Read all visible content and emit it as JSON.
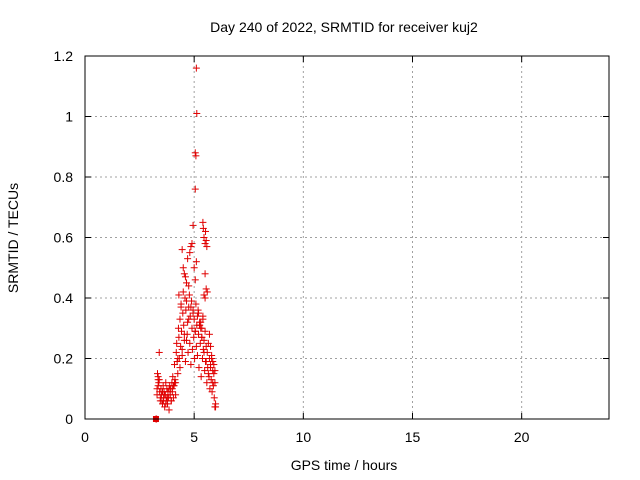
{
  "chart_data": {
    "type": "scatter",
    "title": "Day 240 of 2022, SRMTID for receiver kuj2",
    "xlabel": "GPS time / hours",
    "ylabel": "SRMTID / TECUs",
    "xlim": [
      0,
      24
    ],
    "ylim": [
      0,
      1.2
    ],
    "xticks": [
      0,
      5,
      10,
      15,
      20
    ],
    "yticks": [
      0,
      0.2,
      0.4,
      0.6,
      0.8,
      1,
      1.2
    ],
    "xtick_labels": [
      "0",
      "5",
      "10",
      "15",
      "20"
    ],
    "ytick_labels": [
      "0",
      "0.2",
      "0.4",
      "0.6",
      "0.8",
      "1",
      "1.2"
    ],
    "grid": true,
    "marker": "+",
    "color": "#e00000",
    "series": [
      {
        "name": "SRMTID",
        "x": [
          3.25,
          3.28,
          3.3,
          3.32,
          3.35,
          3.38,
          3.4,
          3.42,
          3.45,
          3.48,
          3.5,
          3.52,
          3.55,
          3.58,
          3.6,
          3.62,
          3.65,
          3.68,
          3.7,
          3.72,
          3.75,
          3.78,
          3.8,
          3.82,
          3.85,
          3.88,
          3.9,
          3.92,
          3.95,
          3.98,
          4.0,
          4.02,
          4.05,
          4.08,
          4.1,
          4.12,
          4.15,
          4.18,
          4.2,
          4.22,
          4.25,
          4.28,
          4.3,
          4.32,
          4.35,
          4.38,
          4.4,
          4.42,
          4.45,
          4.48,
          4.5,
          4.52,
          4.55,
          4.58,
          4.6,
          4.62,
          4.65,
          4.68,
          4.7,
          4.72,
          4.75,
          4.78,
          4.8,
          4.82,
          4.85,
          4.88,
          4.9,
          4.92,
          4.95,
          4.98,
          5.0,
          5.02,
          5.05,
          5.08,
          5.1,
          5.12,
          5.15,
          5.18,
          5.2,
          5.22,
          5.25,
          5.28,
          5.3,
          5.32,
          5.35,
          5.38,
          5.4,
          5.42,
          5.45,
          5.48,
          5.5,
          5.52,
          5.55,
          5.58,
          5.6,
          5.62,
          5.65,
          5.68,
          5.7,
          5.72,
          5.75,
          5.78,
          5.8,
          5.82,
          5.85,
          5.88,
          5.9,
          5.92,
          5.95,
          5.98,
          3.35,
          3.45,
          3.55,
          3.65,
          3.75,
          3.85,
          3.95,
          4.05,
          4.15,
          4.25,
          4.35,
          4.45,
          4.55,
          4.65,
          4.75,
          4.85,
          4.95,
          5.05,
          5.15,
          5.25,
          5.35,
          5.45,
          5.55,
          5.65,
          5.75,
          5.85,
          5.95,
          5.1,
          5.12,
          5.05,
          5.08,
          5.05,
          5.4,
          5.42,
          5.45,
          5.5,
          5.52,
          5.55,
          5.58,
          5.5,
          5.55,
          5.6,
          5.45,
          5.5,
          4.8,
          4.85,
          4.9,
          4.95,
          5.0,
          5.05,
          5.1,
          4.6,
          4.7,
          4.75,
          4.5,
          4.55,
          4.65,
          4.3,
          4.4,
          4.45,
          5.2,
          5.25,
          5.3,
          5.35,
          5.4,
          5.7,
          5.75,
          5.8,
          5.85,
          5.9,
          5.95,
          5.98,
          3.3,
          3.35,
          3.4,
          3.6,
          3.7,
          3.8,
          3.9,
          4.0,
          4.1
        ],
        "y": [
          0.0,
          0.0,
          0.1,
          0.15,
          0.13,
          0.12,
          0.22,
          0.09,
          0.07,
          0.1,
          0.08,
          0.06,
          0.05,
          0.11,
          0.07,
          0.09,
          0.04,
          0.08,
          0.12,
          0.06,
          0.1,
          0.05,
          0.09,
          0.07,
          0.03,
          0.11,
          0.08,
          0.1,
          0.06,
          0.12,
          0.09,
          0.14,
          0.07,
          0.11,
          0.18,
          0.13,
          0.08,
          0.22,
          0.25,
          0.19,
          0.15,
          0.3,
          0.27,
          0.2,
          0.33,
          0.24,
          0.38,
          0.29,
          0.21,
          0.35,
          0.42,
          0.31,
          0.26,
          0.4,
          0.19,
          0.36,
          0.45,
          0.28,
          0.32,
          0.22,
          0.37,
          0.41,
          0.25,
          0.34,
          0.18,
          0.39,
          0.3,
          0.23,
          0.35,
          0.27,
          0.33,
          0.2,
          0.29,
          0.38,
          0.24,
          0.31,
          0.21,
          0.36,
          0.28,
          0.17,
          0.32,
          0.25,
          0.3,
          0.14,
          0.27,
          0.2,
          0.33,
          0.23,
          0.26,
          0.16,
          0.29,
          0.19,
          0.24,
          0.12,
          0.22,
          0.17,
          0.25,
          0.14,
          0.2,
          0.1,
          0.18,
          0.13,
          0.21,
          0.09,
          0.16,
          0.11,
          0.15,
          0.07,
          0.12,
          0.05,
          0.14,
          0.06,
          0.09,
          0.08,
          0.07,
          0.1,
          0.06,
          0.11,
          0.12,
          0.2,
          0.17,
          0.23,
          0.28,
          0.26,
          0.33,
          0.37,
          0.36,
          0.29,
          0.34,
          0.31,
          0.27,
          0.22,
          0.19,
          0.15,
          0.17,
          0.12,
          0.04,
          1.16,
          1.01,
          0.88,
          0.87,
          0.76,
          0.65,
          0.63,
          0.6,
          0.58,
          0.62,
          0.59,
          0.57,
          0.48,
          0.43,
          0.42,
          0.41,
          0.4,
          0.55,
          0.57,
          0.58,
          0.64,
          0.5,
          0.46,
          0.52,
          0.47,
          0.53,
          0.44,
          0.5,
          0.48,
          0.39,
          0.41,
          0.37,
          0.56,
          0.35,
          0.31,
          0.32,
          0.3,
          0.34,
          0.28,
          0.24,
          0.2,
          0.19,
          0.18,
          0.16,
          0.04,
          0.08,
          0.11,
          0.13,
          0.06,
          0.05,
          0.07,
          0.08,
          0.1,
          0.12
        ]
      }
    ],
    "special_point": {
      "x": 3.25,
      "y": 0.0,
      "marker": "square"
    }
  }
}
